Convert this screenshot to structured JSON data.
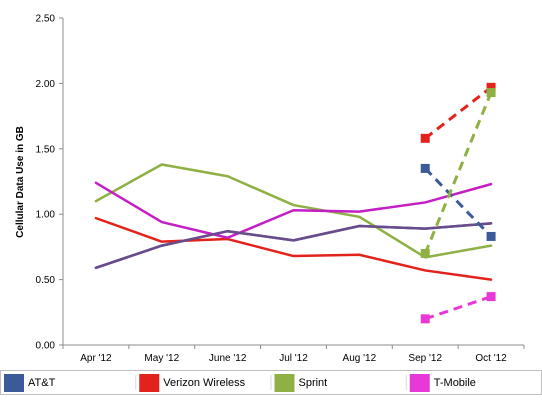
{
  "chart_data": {
    "type": "line",
    "ylabel": "Cellular Data Use in GB",
    "ylim": [
      0,
      2.5
    ],
    "yticks": [
      "0.00",
      "0.50",
      "1.00",
      "1.50",
      "2.00",
      "2.50"
    ],
    "categories": [
      "Apr '12",
      "May '12",
      "June '12",
      "Jul '12",
      "Aug '12",
      "Sep '12",
      "Oct '12"
    ],
    "grid": false,
    "legend_position": "bottom",
    "series": [
      {
        "name": "AT&T",
        "color": "#3a5a98",
        "values": [
          0.59,
          0.76,
          0.87,
          0.8,
          0.91,
          0.89,
          0.93
        ]
      },
      {
        "name": "Verizon Wireless",
        "color": "#e3221c",
        "values": [
          0.97,
          0.79,
          0.81,
          0.68,
          0.69,
          0.57,
          0.5
        ]
      },
      {
        "name": "Sprint",
        "color": "#8fb045",
        "values": [
          1.1,
          1.38,
          1.29,
          1.07,
          0.98,
          0.67,
          0.76
        ]
      },
      {
        "name": "T-Mobile",
        "color": "#c41fc4",
        "values": [
          1.24,
          0.94,
          0.82,
          1.03,
          1.02,
          1.09,
          1.23
        ]
      },
      {
        "name": "",
        "color": "#6a4b8c",
        "values": [
          0.59,
          0.76,
          0.87,
          0.8,
          0.91,
          0.89,
          0.93
        ]
      }
    ],
    "dashed_series": [
      {
        "legend": "AT&T",
        "color": "#3a5a98",
        "values": [
          1.35,
          0.83
        ]
      },
      {
        "legend": "Verizon Wireless",
        "color": "#e3221c",
        "values": [
          1.58,
          1.97
        ]
      },
      {
        "legend": "Sprint",
        "color": "#8fb045",
        "values": [
          0.7,
          1.93
        ]
      },
      {
        "legend": "T-Mobile",
        "color": "#e838d8",
        "values": [
          0.2,
          0.37
        ]
      }
    ],
    "legend": [
      {
        "name": "AT&T",
        "color": "#3a5a98"
      },
      {
        "name": "Verizon Wireless",
        "color": "#e3221c"
      },
      {
        "name": "Sprint",
        "color": "#8fb045"
      },
      {
        "name": "T-Mobile",
        "color": "#e838d8"
      }
    ]
  }
}
